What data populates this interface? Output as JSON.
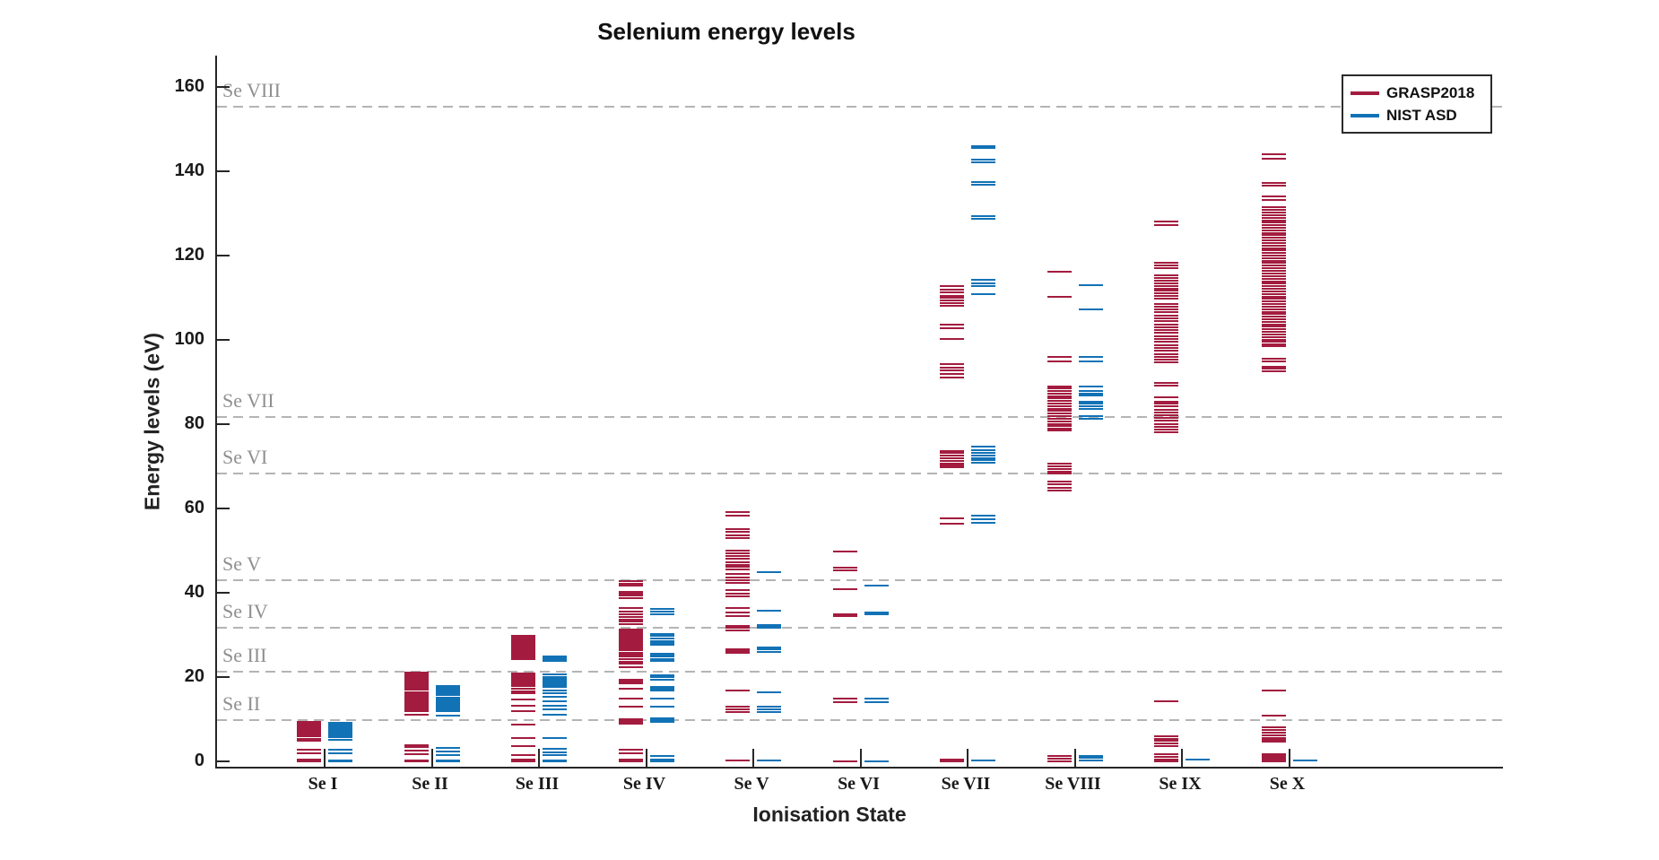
{
  "page": {
    "title": "Selenium energy levels"
  },
  "legend": {
    "items": [
      {
        "label": "GRASP2018",
        "color": "#a31c3f"
      },
      {
        "label": "NIST ASD",
        "color": "#1272b6"
      }
    ]
  },
  "chart_data": {
    "type": "scatter",
    "variant": "energy-level-diagram-horizontal-segments",
    "title": "Selenium energy levels",
    "xlabel": "Ionisation State",
    "ylabel": "Energy levels (eV)",
    "ylim": [
      -1.5,
      167
    ],
    "legend_position": "upper right",
    "grid": "dashed horizontal ionisation-threshold lines only",
    "categories": [
      "Se I",
      "Se II",
      "Se III",
      "Se IV",
      "Se V",
      "Se VI",
      "Se VII",
      "Se VIII",
      "Se IX",
      "Se X"
    ],
    "y_ticks": [
      0,
      20,
      40,
      60,
      80,
      100,
      120,
      140,
      160
    ],
    "thresholds": [
      {
        "label": "Se II",
        "value_eV": 9.75
      },
      {
        "label": "Se III",
        "value_eV": 21.2
      },
      {
        "label": "Se IV",
        "value_eV": 31.7
      },
      {
        "label": "Se V",
        "value_eV": 42.9
      },
      {
        "label": "Se VI",
        "value_eV": 68.3
      },
      {
        "label": "Se VII",
        "value_eV": 81.7
      },
      {
        "label": "Se VIII",
        "value_eV": 155.3
      }
    ],
    "series": [
      {
        "name": "GRASP2018",
        "color": "#a31c3f",
        "side": "left",
        "levels_eV_by_state": {
          "Se I": [
            0.0,
            0.22,
            0.32,
            1.9,
            2.7,
            4.8,
            5.4,
            5.9,
            6.15,
            6.4,
            6.65,
            6.9,
            7.15,
            7.4,
            7.65,
            7.9,
            8.15,
            8.4,
            8.65,
            8.9,
            9.15,
            9.4
          ],
          "Se II": [
            0.0,
            0.3,
            1.7,
            2.5,
            3.3,
            3.8,
            11.0,
            11.9,
            12.2,
            12.5,
            12.8,
            13.1,
            13.4,
            13.7,
            14.0,
            14.3,
            14.6,
            14.9,
            15.2,
            15.5,
            15.8,
            16.1,
            16.4,
            17.1,
            17.4,
            17.7,
            18.0,
            18.3,
            18.6,
            18.9,
            19.2,
            19.5,
            19.8,
            20.1,
            20.4,
            20.7,
            21.0
          ],
          "Se III": [
            0.0,
            0.25,
            0.5,
            1.5,
            3.7,
            5.5,
            8.7,
            11.9,
            13.1,
            14.7,
            16.1,
            16.7,
            17.3,
            17.9,
            18.2,
            18.5,
            18.8,
            19.1,
            19.4,
            19.7,
            20.0,
            20.3,
            20.6,
            20.9,
            24.3,
            24.6,
            24.9,
            25.2,
            25.5,
            25.8,
            26.1,
            26.4,
            26.9,
            27.3,
            27.7,
            28.1,
            28.5,
            28.9,
            29.3,
            29.7
          ],
          "Se IV": [
            0.0,
            0.5,
            2.0,
            2.7,
            9.0,
            9.4,
            9.8,
            10.1,
            12.9,
            15.0,
            17.2,
            18.6,
            19.0,
            19.3,
            22.3,
            23.2,
            23.7,
            24.2,
            24.8,
            25.3,
            25.7,
            26.4,
            26.8,
            27.2,
            27.6,
            28.0,
            28.4,
            28.8,
            29.2,
            29.6,
            30.0,
            30.4,
            30.8,
            31.2,
            32.6,
            33.1,
            33.7,
            34.3,
            34.9,
            35.5,
            36.3,
            38.8,
            39.3,
            39.8,
            40.2,
            41.6,
            42.1,
            42.7
          ],
          "Se V": [
            0.2,
            11.8,
            12.3,
            12.9,
            16.8,
            25.7,
            26.2,
            26.7,
            31.0,
            31.6,
            32.1,
            34.5,
            35.4,
            36.3,
            39.1,
            39.8,
            40.6,
            42.3,
            43.0,
            43.7,
            44.5,
            45.5,
            46.1,
            46.7,
            47.3,
            48.0,
            48.7,
            49.4,
            50.1,
            53.0,
            53.7,
            54.4,
            55.1,
            58.3,
            59.2
          ],
          "Se VI": [
            0.1,
            14.0,
            14.8,
            34.5,
            34.9,
            40.8,
            45.3,
            46.0,
            49.8
          ],
          "Se VII": [
            0.0,
            0.4,
            56.3,
            57.7,
            69.7,
            70.2,
            70.7,
            71.3,
            71.9,
            72.5,
            73.1,
            73.6,
            91.1,
            91.9,
            92.7,
            93.5,
            94.3,
            100.3,
            102.7,
            103.6,
            108.1,
            108.7,
            109.3,
            109.9,
            110.5,
            111.2,
            111.9,
            112.7
          ],
          "Se VIII": [
            0.1,
            0.7,
            1.3,
            64.3,
            65.0,
            65.7,
            66.4,
            68.2,
            68.8,
            69.4,
            70.0,
            70.6,
            78.5,
            78.9,
            79.5,
            80.1,
            80.7,
            81.3,
            81.9,
            82.5,
            83.1,
            83.7,
            84.3,
            84.9,
            85.5,
            86.1,
            86.7,
            87.3,
            87.9,
            88.5,
            89.0,
            94.9,
            95.9,
            110.2,
            116.2
          ],
          "Se IX": [
            0.0,
            0.5,
            1.1,
            1.6,
            3.7,
            4.2,
            4.8,
            5.4,
            6.0,
            14.3,
            78.1,
            78.7,
            79.4,
            80.1,
            80.8,
            81.5,
            82.1,
            82.8,
            83.5,
            84.2,
            84.9,
            85.4,
            86.4,
            89.1,
            89.8,
            94.6,
            95.3,
            96.0,
            96.7,
            97.4,
            98.1,
            98.8,
            99.5,
            100.2,
            100.9,
            101.6,
            102.3,
            103.0,
            103.7,
            104.4,
            105.1,
            105.8,
            106.5,
            107.2,
            107.9,
            108.6,
            109.8,
            110.4,
            111.0,
            111.6,
            112.2,
            112.8,
            113.4,
            114.0,
            114.6,
            115.3,
            117.0,
            117.7,
            118.4,
            127.2,
            128.0
          ],
          "Se X": [
            0.0,
            0.45,
            0.9,
            1.35,
            1.75,
            4.7,
            5.1,
            5.5,
            6.2,
            6.8,
            7.4,
            8.0,
            10.8,
            16.8,
            92.5,
            93.1,
            93.7,
            94.9,
            95.5,
            98.5,
            99.0,
            99.5,
            100.1,
            100.7,
            101.3,
            101.9,
            102.5,
            103.1,
            103.7,
            104.3,
            104.9,
            105.5,
            106.1,
            106.7,
            107.3,
            107.9,
            108.5,
            109.1,
            109.7,
            110.3,
            110.9,
            111.5,
            112.1,
            112.7,
            113.3,
            113.9,
            114.5,
            115.1,
            115.7,
            116.4,
            117.0,
            117.6,
            118.2,
            118.8,
            119.4,
            120.0,
            120.6,
            121.2,
            121.8,
            122.4,
            123.0,
            123.6,
            124.2,
            124.8,
            125.4,
            126.0,
            126.6,
            127.2,
            127.8,
            128.4,
            129.0,
            129.6,
            130.2,
            130.8,
            131.4,
            133.2,
            134.0,
            136.5,
            137.3,
            142.9,
            144.0
          ]
        }
      },
      {
        "name": "NIST ASD",
        "color": "#1272b6",
        "side": "right",
        "levels_eV_by_state": {
          "Se I": [
            0.0,
            0.25,
            0.31,
            2.0,
            2.8,
            5.1,
            5.7,
            6.2,
            6.45,
            6.7,
            6.95,
            7.2,
            7.45,
            7.7,
            7.95,
            8.2,
            8.45,
            8.7,
            8.95,
            9.2
          ],
          "Se II": [
            0.0,
            0.25,
            1.4,
            2.3,
            3.2,
            10.8,
            11.9,
            12.2,
            12.5,
            12.8,
            13.1,
            13.4,
            13.7,
            14.0,
            14.3,
            14.6,
            14.9,
            15.2,
            15.7,
            16.0,
            16.3,
            16.6,
            16.9,
            17.2,
            17.5,
            17.9
          ],
          "Se III": [
            0.0,
            0.3,
            1.4,
            2.2,
            2.9,
            5.6,
            11.1,
            12.4,
            13.2,
            14.3,
            15.4,
            16.2,
            16.9,
            17.7,
            18.1,
            18.5,
            18.9,
            19.3,
            19.7,
            20.1,
            20.7,
            23.9,
            24.3,
            24.7,
            25.0
          ],
          "Se IV": [
            0.0,
            0.5,
            1.3,
            9.3,
            9.8,
            10.3,
            12.9,
            15.0,
            16.9,
            17.3,
            17.6,
            19.4,
            19.9,
            20.5,
            23.8,
            24.3,
            24.8,
            25.3,
            25.6,
            27.7,
            28.1,
            28.5,
            29.2,
            29.7,
            30.3,
            35.0,
            35.6,
            36.1
          ],
          "Se V": [
            0.3,
            11.8,
            12.4,
            12.9,
            16.4,
            26.0,
            26.5,
            27.1,
            31.7,
            32.0,
            32.3,
            35.8,
            44.9
          ],
          "Se VI": [
            0.1,
            14.1,
            15.0,
            35.0,
            35.4,
            41.6
          ],
          "Se VII": [
            0.3,
            56.7,
            57.4,
            58.2,
            70.8,
            71.4,
            72.0,
            72.6,
            73.2,
            73.9,
            74.6,
            110.9,
            112.7,
            113.4,
            114.2,
            128.8,
            129.4,
            136.9,
            137.4,
            142.2,
            142.7,
            145.6,
            146.0
          ],
          "Se VIII": [
            0.2,
            0.8,
            1.3,
            81.3,
            81.9,
            83.7,
            84.2,
            84.8,
            85.4,
            86.8,
            87.3,
            87.9,
            88.9,
            95.0,
            95.9,
            107.2,
            112.9
          ],
          "Se IX": [
            0.4
          ],
          "Se X": [
            0.15
          ]
        }
      }
    ]
  }
}
